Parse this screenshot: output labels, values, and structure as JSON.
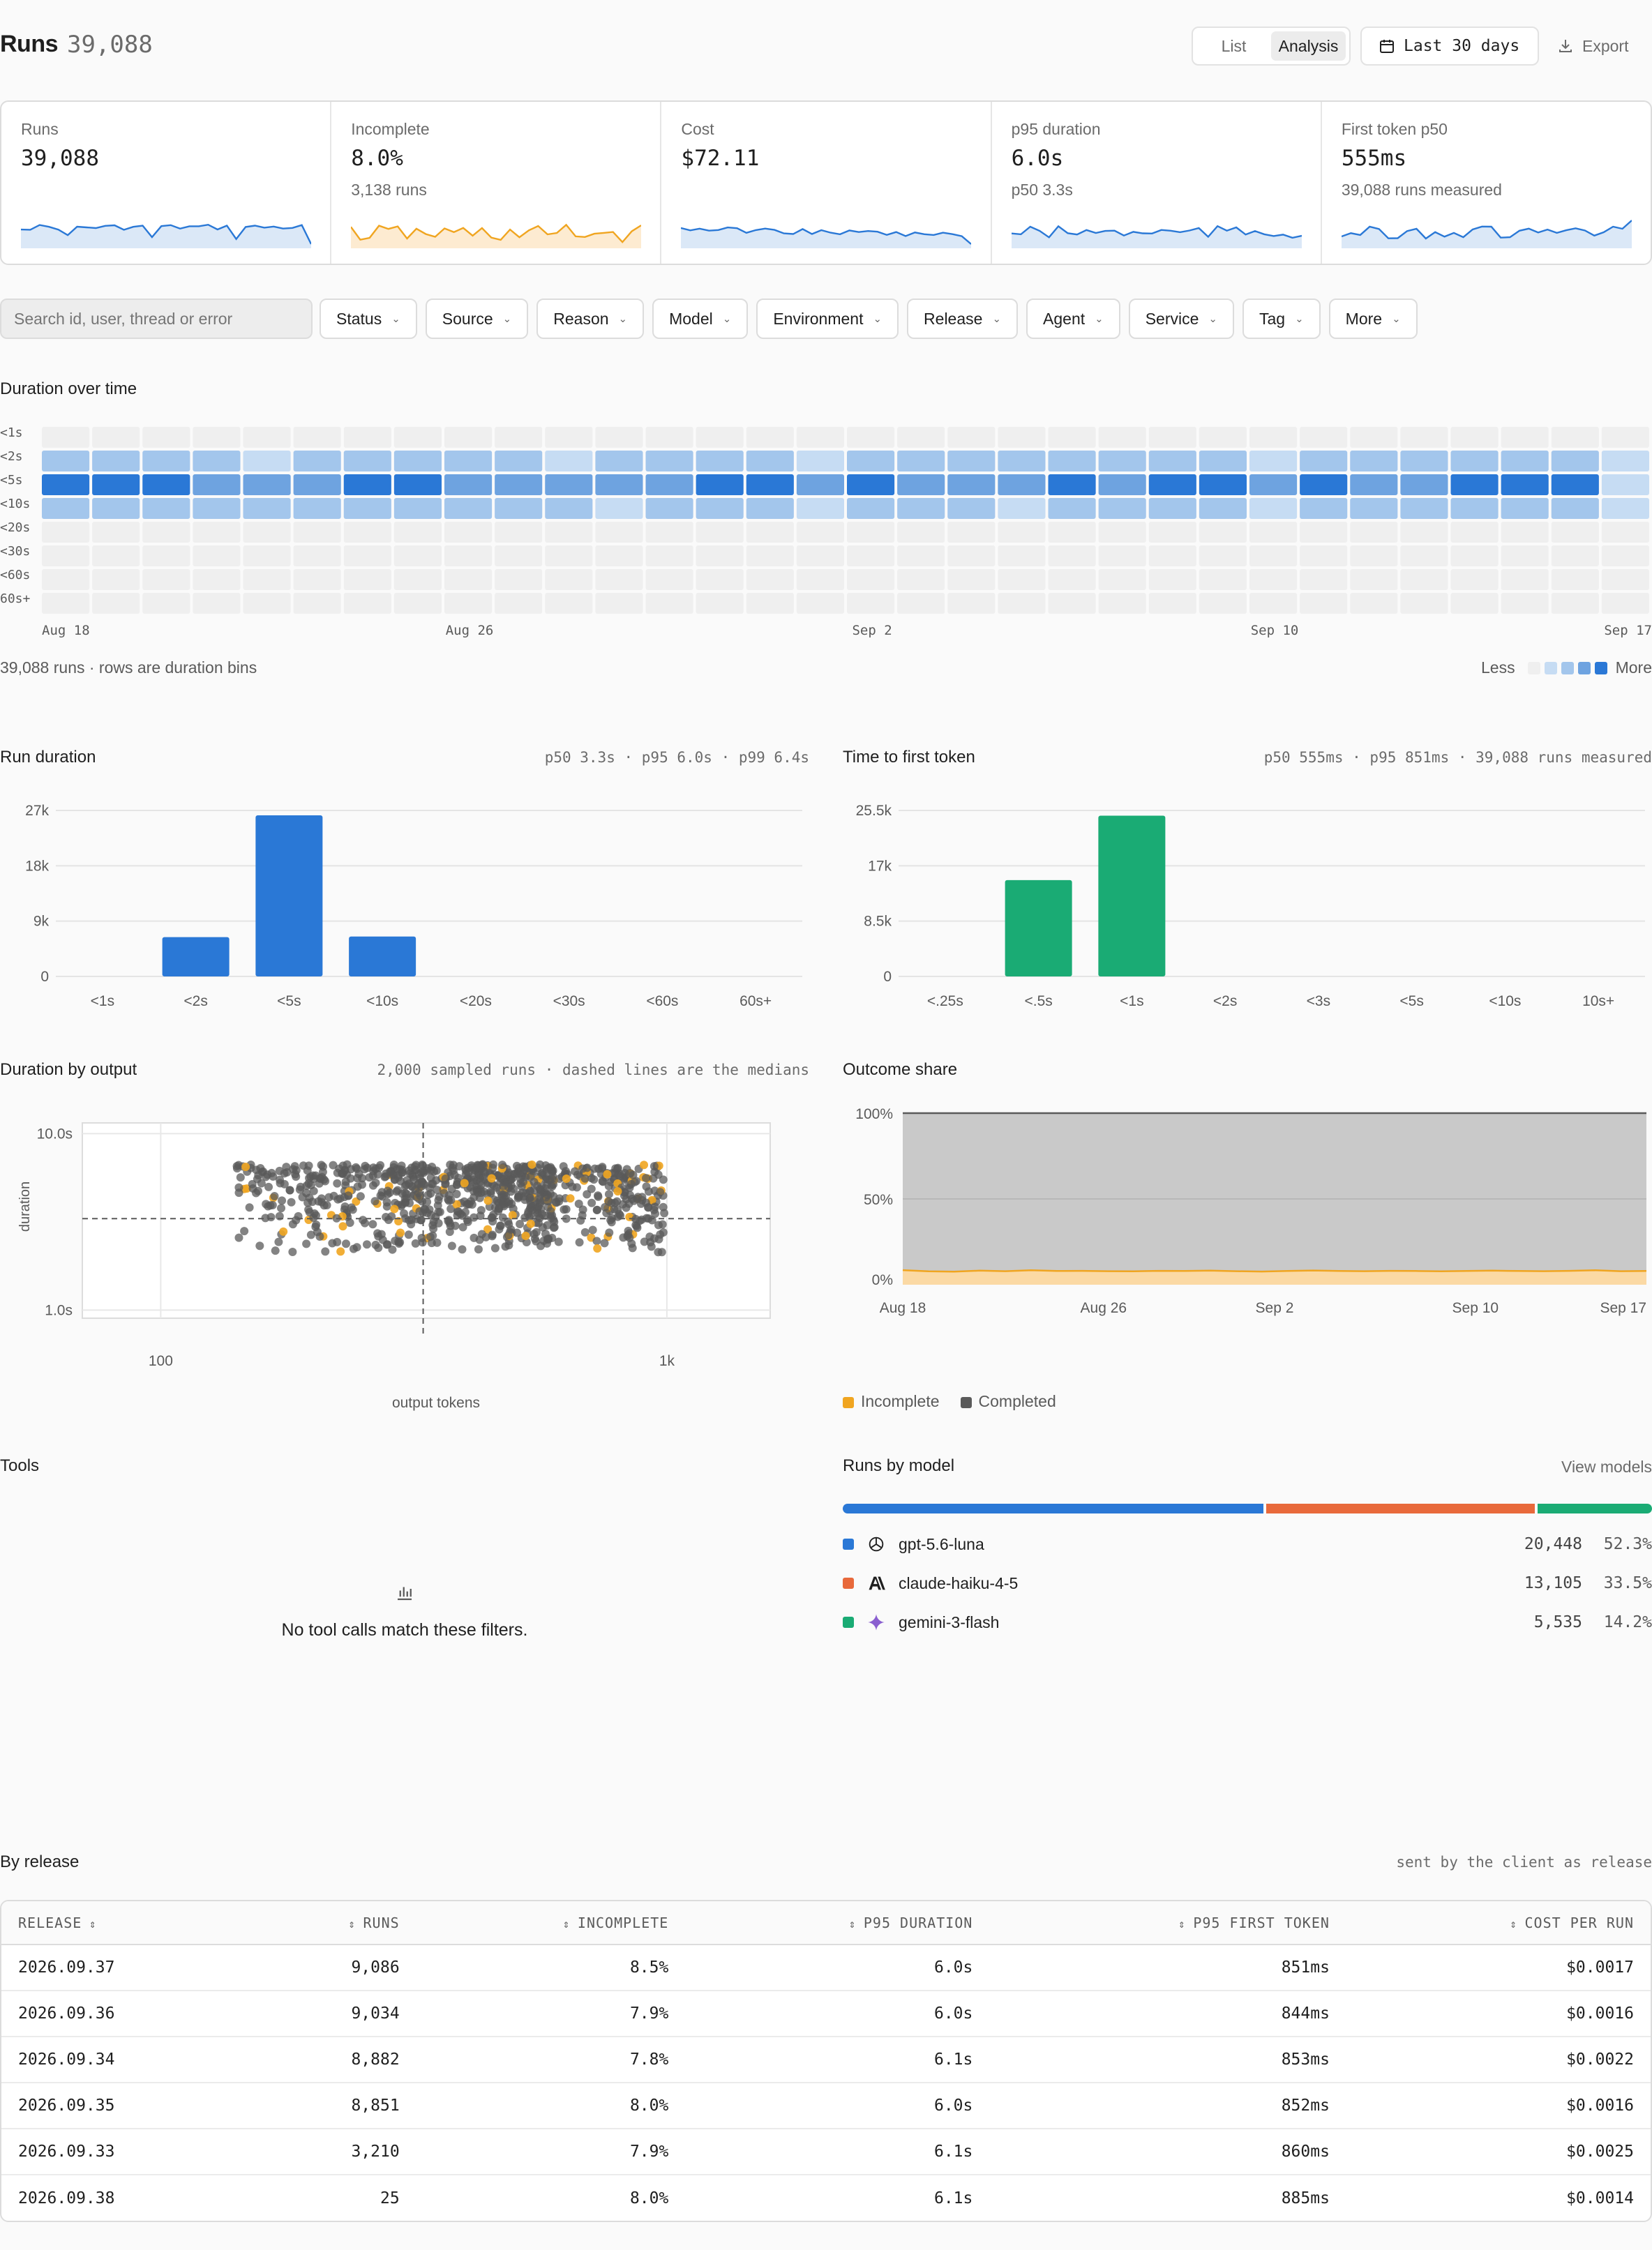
{
  "header": {
    "title": "Runs",
    "count": "39,088",
    "view_tabs": [
      "List",
      "Analysis"
    ],
    "active_tab": "Analysis",
    "date_range": "Last 30 days",
    "export_label": "Export"
  },
  "kpis": [
    {
      "label": "Runs",
      "value": "39,088",
      "sub": "",
      "color": "#2a78d6"
    },
    {
      "label": "Incomplete",
      "value": "8.0%",
      "sub": "3,138 runs",
      "color": "#f0a520"
    },
    {
      "label": "Cost",
      "value": "$72.11",
      "sub": "",
      "color": "#2a78d6"
    },
    {
      "label": "p95 duration",
      "value": "6.0s",
      "sub": "p50 3.3s",
      "color": "#2a78d6"
    },
    {
      "label": "First token p50",
      "value": "555ms",
      "sub": "39,088 runs measured",
      "color": "#2a78d6"
    }
  ],
  "filters": {
    "search_placeholder": "Search id, user, thread or error",
    "items": [
      "Status",
      "Source",
      "Reason",
      "Model",
      "Environment",
      "Release",
      "Agent",
      "Service",
      "Tag",
      "More"
    ]
  },
  "heatmap": {
    "title": "Duration over time",
    "row_labels": [
      "<1s",
      "<2s",
      "<5s",
      "<10s",
      "<20s",
      "<30s",
      "<60s",
      "60s+"
    ],
    "x_labels": [
      "Aug 18",
      "Aug 26",
      "Sep 2",
      "Sep 10",
      "Sep 17"
    ],
    "caption": "39,088 runs · rows are duration bins",
    "legend_less": "Less",
    "legend_more": "More",
    "scale_colors": [
      "#efefef",
      "#c6dcf3",
      "#a3c6ec",
      "#6ea3e0",
      "#2a78d6"
    ]
  },
  "run_duration": {
    "title": "Run duration",
    "meta": "p50 3.3s · p95 6.0s · p99 6.4s"
  },
  "ttft": {
    "title": "Time to first token",
    "meta": "p50 555ms · p95 851ms · 39,088 runs measured"
  },
  "scatter": {
    "title": "Duration by output",
    "meta": "2,000 sampled runs · dashed lines are the medians",
    "x_label": "output tokens",
    "y_label": "duration",
    "y_ticks": [
      "10.0s",
      "1.0s"
    ],
    "x_ticks": [
      "100",
      "1k"
    ]
  },
  "outcome": {
    "title": "Outcome share",
    "y_ticks": [
      "100%",
      "50%",
      "0%"
    ],
    "x_ticks": [
      "Aug 18",
      "Aug 26",
      "Sep 2",
      "Sep 10",
      "Sep 17"
    ],
    "legend": [
      {
        "name": "Incomplete",
        "color": "#f0a520"
      },
      {
        "name": "Completed",
        "color": "#5a5a5a"
      }
    ]
  },
  "tools": {
    "title": "Tools",
    "empty_message": "No tool calls match these filters."
  },
  "models": {
    "title": "Runs by model",
    "link": "View models",
    "items": [
      {
        "name": "gpt-5.6-luna",
        "runs": "20,448",
        "share": "52.3%",
        "pct": 52.3,
        "color": "#2a78d6",
        "icon": "openai-icon"
      },
      {
        "name": "claude-haiku-4-5",
        "runs": "13,105",
        "share": "33.5%",
        "pct": 33.5,
        "color": "#e8693b",
        "icon": "anthropic-icon"
      },
      {
        "name": "gemini-3-flash",
        "runs": "5,535",
        "share": "14.2%",
        "pct": 14.2,
        "color": "#1aab74",
        "icon": "gemini-icon"
      }
    ]
  },
  "releases": {
    "title": "By release",
    "meta": "sent by the client as release",
    "columns": [
      "RELEASE",
      "RUNS",
      "INCOMPLETE",
      "P95 DURATION",
      "P95 FIRST TOKEN",
      "COST PER RUN"
    ],
    "rows": [
      [
        "2026.09.37",
        "9,086",
        "8.5%",
        "6.0s",
        "851ms",
        "$0.0017"
      ],
      [
        "2026.09.36",
        "9,034",
        "7.9%",
        "6.0s",
        "844ms",
        "$0.0016"
      ],
      [
        "2026.09.34",
        "8,882",
        "7.8%",
        "6.1s",
        "853ms",
        "$0.0022"
      ],
      [
        "2026.09.35",
        "8,851",
        "8.0%",
        "6.0s",
        "852ms",
        "$0.0016"
      ],
      [
        "2026.09.33",
        "3,210",
        "7.9%",
        "6.1s",
        "860ms",
        "$0.0025"
      ],
      [
        "2026.09.38",
        "25",
        "8.0%",
        "6.1s",
        "885ms",
        "$0.0014"
      ]
    ]
  },
  "chart_data": [
    {
      "type": "bar",
      "title": "Run duration",
      "categories": [
        "<1s",
        "<2s",
        "<5s",
        "<10s",
        "<20s",
        "<30s",
        "<60s",
        "60s+"
      ],
      "values": [
        0,
        6400,
        26200,
        6500,
        0,
        0,
        0,
        0
      ],
      "y_ticks": [
        "27k",
        "18k",
        "9k",
        "0"
      ],
      "ylim": [
        0,
        27000
      ],
      "color": "#2a78d6"
    },
    {
      "type": "bar",
      "title": "Time to first token",
      "categories": [
        "<.25s",
        "<.5s",
        "<1s",
        "<2s",
        "<3s",
        "<5s",
        "<10s",
        "10s+"
      ],
      "values": [
        0,
        14800,
        24700,
        0,
        0,
        0,
        0,
        0
      ],
      "y_ticks": [
        "25.5k",
        "17k",
        "8.5k",
        "0"
      ],
      "ylim": [
        0,
        25500
      ],
      "color": "#1aab74"
    },
    {
      "type": "heatmap",
      "title": "Duration over time",
      "rows": [
        "<1s",
        "<2s",
        "<5s",
        "<10s",
        "<20s",
        "<30s",
        "<60s",
        "60s+"
      ],
      "x_range": [
        "Aug 18",
        "Sep 17"
      ],
      "intensity_levels": [
        [
          0,
          0,
          0,
          0,
          0,
          0,
          0,
          0,
          0,
          0,
          0,
          0,
          0,
          0,
          0,
          0,
          0,
          0,
          0,
          0,
          0,
          0,
          0,
          0,
          0,
          0,
          0,
          0,
          0,
          0,
          0,
          0
        ],
        [
          2,
          2,
          2,
          2,
          1,
          2,
          2,
          2,
          2,
          2,
          1,
          2,
          2,
          2,
          2,
          1,
          2,
          2,
          2,
          2,
          2,
          2,
          2,
          2,
          1,
          2,
          2,
          2,
          2,
          2,
          2,
          1
        ],
        [
          4,
          4,
          4,
          3,
          3,
          3,
          4,
          4,
          3,
          3,
          3,
          3,
          3,
          4,
          4,
          3,
          4,
          3,
          3,
          3,
          4,
          3,
          4,
          4,
          3,
          4,
          3,
          3,
          4,
          4,
          4,
          1
        ],
        [
          2,
          2,
          2,
          2,
          2,
          2,
          2,
          2,
          2,
          2,
          2,
          1,
          2,
          2,
          2,
          1,
          2,
          2,
          2,
          1,
          2,
          2,
          2,
          2,
          1,
          2,
          2,
          2,
          2,
          2,
          2,
          1
        ],
        [
          0,
          0,
          0,
          0,
          0,
          0,
          0,
          0,
          0,
          0,
          0,
          0,
          0,
          0,
          0,
          0,
          0,
          0,
          0,
          0,
          0,
          0,
          0,
          0,
          0,
          0,
          0,
          0,
          0,
          0,
          0,
          0
        ],
        [
          0,
          0,
          0,
          0,
          0,
          0,
          0,
          0,
          0,
          0,
          0,
          0,
          0,
          0,
          0,
          0,
          0,
          0,
          0,
          0,
          0,
          0,
          0,
          0,
          0,
          0,
          0,
          0,
          0,
          0,
          0,
          0
        ],
        [
          0,
          0,
          0,
          0,
          0,
          0,
          0,
          0,
          0,
          0,
          0,
          0,
          0,
          0,
          0,
          0,
          0,
          0,
          0,
          0,
          0,
          0,
          0,
          0,
          0,
          0,
          0,
          0,
          0,
          0,
          0,
          0
        ],
        [
          0,
          0,
          0,
          0,
          0,
          0,
          0,
          0,
          0,
          0,
          0,
          0,
          0,
          0,
          0,
          0,
          0,
          0,
          0,
          0,
          0,
          0,
          0,
          0,
          0,
          0,
          0,
          0,
          0,
          0,
          0,
          0
        ]
      ]
    },
    {
      "type": "scatter",
      "title": "Duration by output",
      "x_label": "output tokens",
      "y_label": "duration",
      "x_scale": "log",
      "y_scale": "log",
      "xlim": [
        70,
        1600
      ],
      "ylim": [
        1.0,
        10.0
      ],
      "x_median": 330,
      "y_median": 3.3,
      "point_count": 2000,
      "series": [
        {
          "name": "Completed",
          "color": "#5a5a5a"
        },
        {
          "name": "Incomplete",
          "color": "#f0a520"
        }
      ]
    },
    {
      "type": "area",
      "title": "Outcome share",
      "x_range": [
        "Aug 18",
        "Sep 17"
      ],
      "ylim": [
        0,
        100
      ],
      "series": [
        {
          "name": "Incomplete",
          "values": [
            8.5,
            7.8,
            7.6,
            8.2,
            7.9,
            8.4,
            8.0,
            8.1,
            7.9,
            7.8,
            8.1,
            8.0,
            8.2,
            7.9,
            7.7,
            8.0,
            8.3,
            8.0,
            7.9,
            8.1,
            8.0,
            7.8,
            8.0,
            8.2,
            8.0,
            7.9,
            8.1,
            8.4,
            7.9,
            8.0
          ]
        },
        {
          "name": "Completed",
          "values": [
            91.5,
            92.2,
            92.4,
            91.8,
            92.1,
            91.6,
            92.0,
            91.9,
            92.1,
            92.2,
            91.9,
            92.0,
            91.8,
            92.1,
            92.3,
            92.0,
            91.7,
            92.0,
            92.1,
            91.9,
            92.0,
            92.2,
            92.0,
            91.8,
            92.0,
            92.1,
            91.9,
            91.6,
            92.1,
            92.0
          ]
        }
      ]
    }
  ]
}
